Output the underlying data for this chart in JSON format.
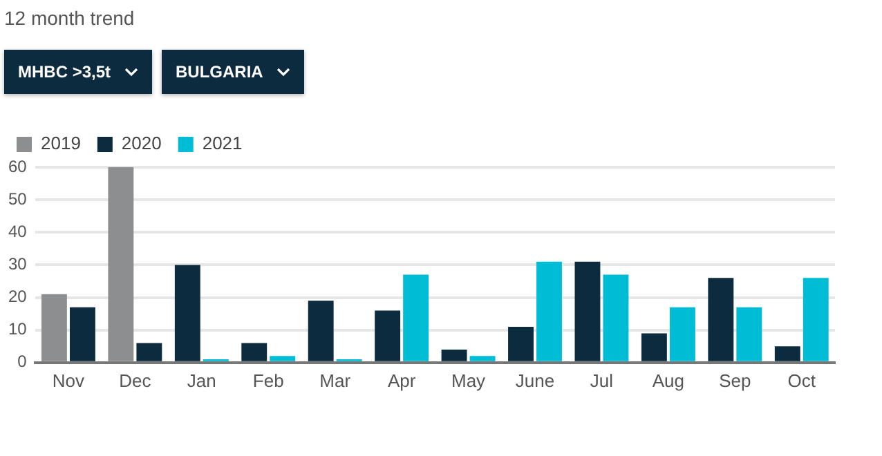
{
  "chart_data": {
    "type": "bar",
    "title": "12 month trend",
    "annotations": [
      "MHBC >3,5t",
      "BULGARIA"
    ],
    "categories": [
      "Nov",
      "Dec",
      "Jan",
      "Feb",
      "Mar",
      "Apr",
      "May",
      "June",
      "Jul",
      "Aug",
      "Sep",
      "Oct"
    ],
    "series": [
      {
        "name": "2019",
        "color": "#8c8e90",
        "values": [
          21,
          60,
          null,
          null,
          null,
          null,
          null,
          null,
          null,
          null,
          null,
          null
        ]
      },
      {
        "name": "2020",
        "color": "#0d2b3e",
        "values": [
          17,
          6,
          30,
          6,
          19,
          16,
          4,
          11,
          31,
          9,
          26,
          5
        ]
      },
      {
        "name": "2021",
        "color": "#00bcd4",
        "values": [
          null,
          null,
          1,
          2,
          1,
          27,
          2,
          31,
          27,
          17,
          17,
          26
        ]
      }
    ],
    "ylim": [
      0,
      60
    ],
    "yticks": [
      0,
      10,
      20,
      30,
      40,
      50,
      60
    ],
    "grid": "y",
    "legend": "top left"
  }
}
